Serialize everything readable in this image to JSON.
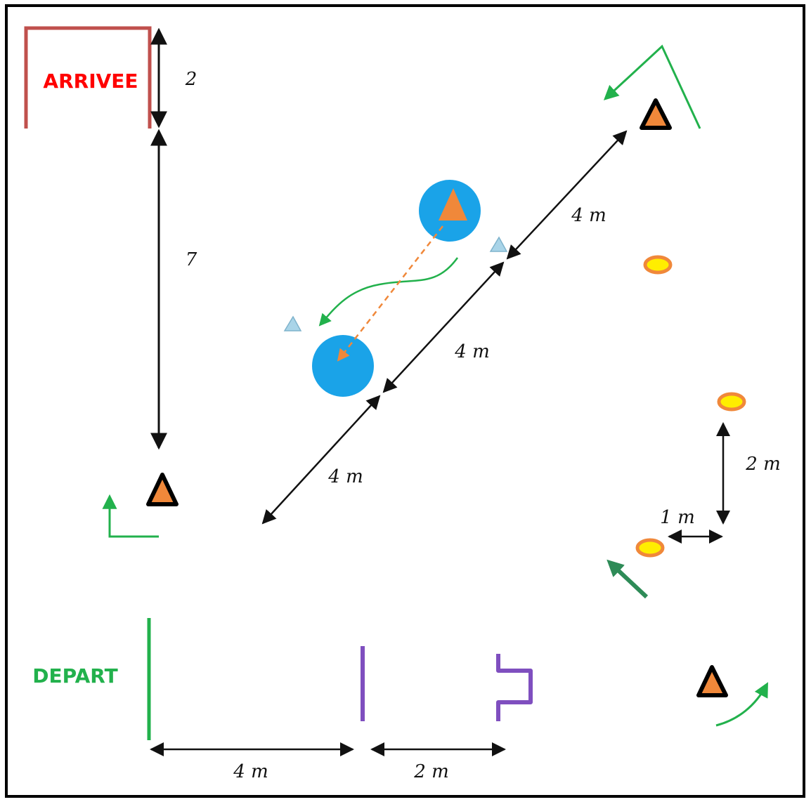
{
  "labels": {
    "arrivee": "ARRIVEE",
    "depart": "DEPART"
  },
  "dimensions": {
    "finish_gate_height": "2",
    "finish_to_cone": "7",
    "diag_upper": "4 m",
    "diag_middle": "4 m",
    "diag_lower": "4 m",
    "cones_vertical": "2 m",
    "cones_horizontal": "1 m",
    "start_to_hurdle": "4 m",
    "hurdle_to_step": "2 m"
  },
  "colors": {
    "finish_gate": "#c0504d",
    "finish_text": "#ff0000",
    "start_text": "#22b14c",
    "start_line": "#22b14c",
    "path_arrow": "#22b14c",
    "hurdle": "#7f4fbf",
    "cone_fill": "#f0883a",
    "cone_outline": "#000000",
    "disc_yellow": "#ffee00",
    "disc_orange": "#f0883a",
    "pool": "#1aa3e8",
    "jump_arrow": "#f0883a",
    "marker": "#a9d4e8"
  }
}
